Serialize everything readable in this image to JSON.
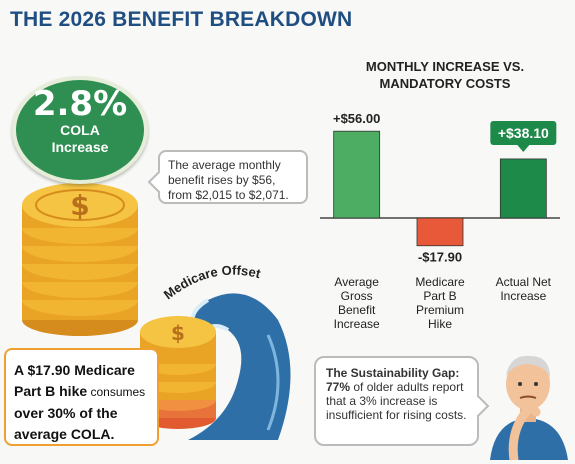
{
  "title": "THE 2026 BENEFIT BREAKDOWN",
  "cola_badge": {
    "percent": "2.8%",
    "line1": "COLA",
    "line2": "Increase"
  },
  "avg_bubble": {
    "text": "The average monthly benefit rises by $56, from $2,015 to $2,071."
  },
  "medicare_offset_label": "Medicare Offset",
  "hike_callout": {
    "part1": "A $17.90 Medicare Part B hike",
    "part2": " consumes",
    "part3": " over 30% of the average COLA."
  },
  "gap_callout": {
    "heading": "The Sustainability Gap:",
    "bold": "77%",
    "text": " of older adults report that a 3% increase is insufficient for rising costs."
  },
  "colors": {
    "green": "#4cad63",
    "dark_green": "#1e8a4a",
    "red": "#e8593a",
    "title_blue": "#1f4e82",
    "coin_gold": "#f2b531",
    "wave_blue": "#2f6fa8"
  },
  "chart_data": {
    "type": "bar",
    "title": "MONTHLY INCREASE VS. MANDATORY COSTS",
    "categories": [
      "Average Gross Benefit Increase",
      "Medicare Part B Premium Hike",
      "Actual Net Increase"
    ],
    "category_label_lines": [
      [
        "Average",
        "Gross",
        "Benefit",
        "Increase"
      ],
      [
        "Medicare",
        "Part B",
        "Premium",
        "Hike"
      ],
      [
        "Actual Net",
        "Increase"
      ]
    ],
    "values": [
      56.0,
      -17.9,
      38.1
    ],
    "data_labels": [
      "+$56.00",
      "-$17.90",
      "+$38.10"
    ],
    "bar_colors": [
      "#4cad63",
      "#e8593a",
      "#1e8a4a"
    ],
    "grid": false,
    "ylim": [
      -25,
      60
    ]
  }
}
